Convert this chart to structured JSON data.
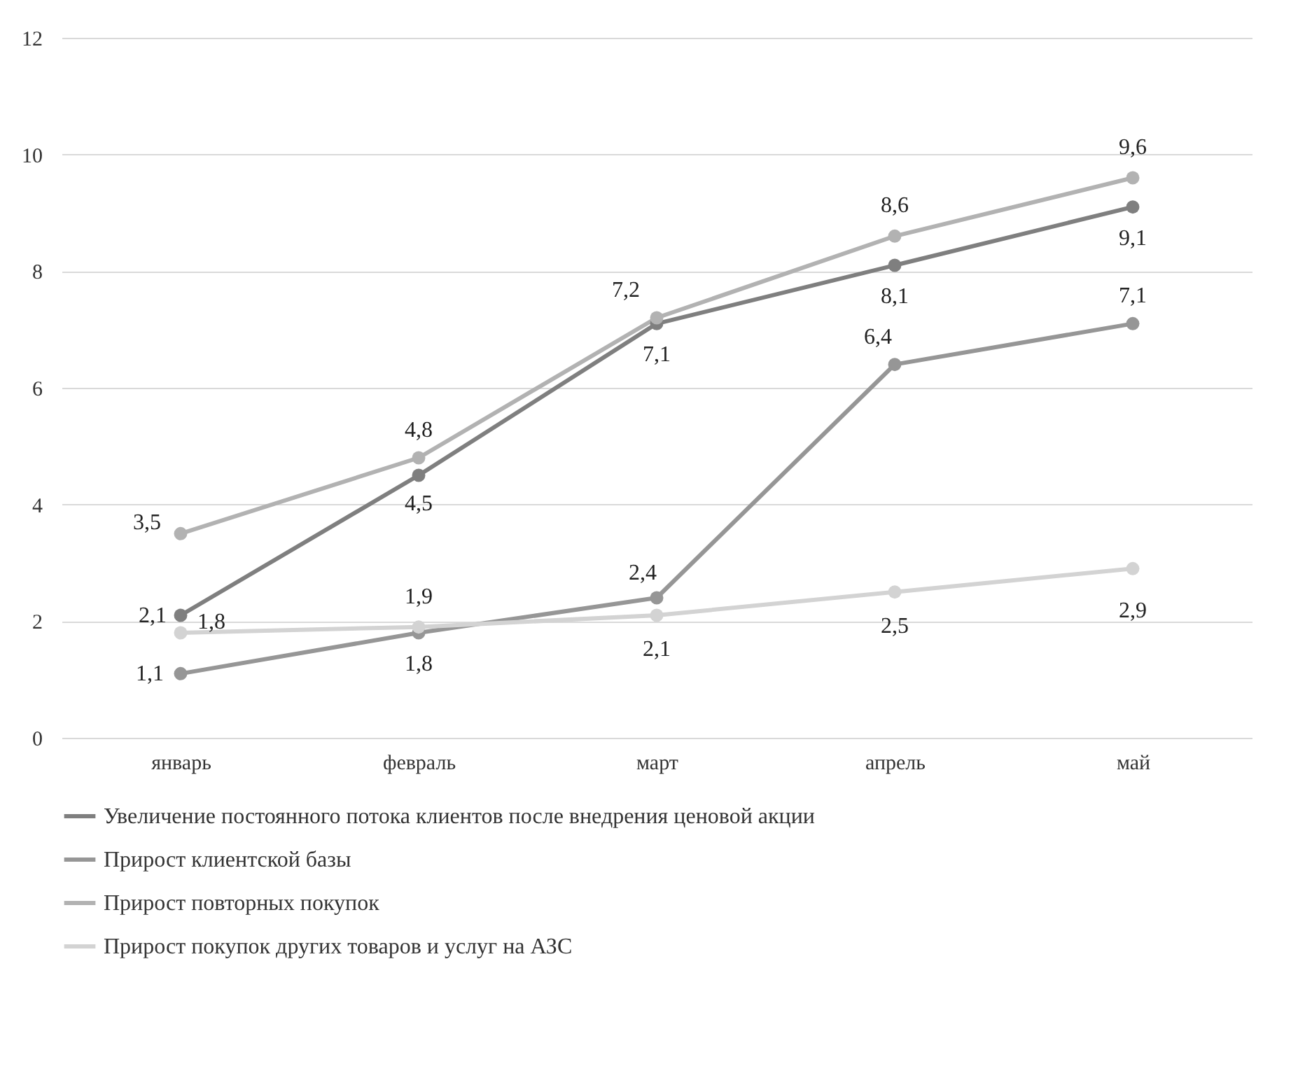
{
  "chart_data": {
    "type": "line",
    "categories": [
      "январь",
      "февраль",
      "март",
      "апрель",
      "май"
    ],
    "series": [
      {
        "name": "Увеличение постоянного потока клиентов после внедрения ценовой акции",
        "color": "#7f7f7f",
        "values": [
          2.1,
          4.5,
          7.1,
          8.1,
          9.1
        ],
        "value_labels": [
          "2,1",
          "4,5",
          "7,1",
          "8,1",
          "9,1"
        ]
      },
      {
        "name": "Прирост клиентской базы",
        "color": "#969696",
        "values": [
          1.1,
          1.8,
          2.4,
          6.4,
          7.1
        ],
        "value_labels": [
          "1,1",
          "1,8",
          "2,4",
          "6,4",
          "7,1"
        ]
      },
      {
        "name": "Прирост повторных покупок",
        "color": "#b2b2b2",
        "values": [
          3.5,
          4.8,
          7.2,
          8.6,
          9.6
        ],
        "value_labels": [
          "3,5",
          "4,8",
          "7,2",
          "8,6",
          "9,6"
        ]
      },
      {
        "name": "Прирост покупок других товаров и услуг на АЗС",
        "color": "#d3d3d3",
        "values": [
          1.8,
          1.9,
          2.1,
          2.5,
          2.9
        ],
        "value_labels": [
          "1,8",
          "1,9",
          "2,1",
          "2,5",
          "2,9"
        ]
      }
    ],
    "ylim": [
      0,
      12
    ],
    "yticks": [
      0,
      2,
      4,
      6,
      8,
      10,
      12
    ],
    "grid": "y",
    "legend": "bottom",
    "marker": "circle",
    "line_style": "solid"
  }
}
